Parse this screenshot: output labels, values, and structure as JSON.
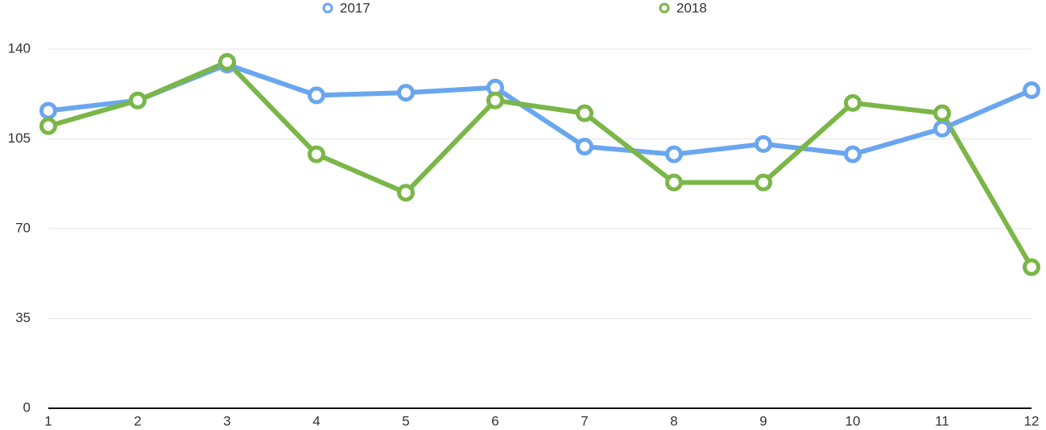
{
  "chart_data": {
    "type": "line",
    "categories": [
      "1",
      "2",
      "3",
      "4",
      "5",
      "6",
      "7",
      "8",
      "9",
      "10",
      "11",
      "12"
    ],
    "series": [
      {
        "name": "2017",
        "color": "#6aa6ef",
        "values": [
          116,
          120,
          134,
          122,
          123,
          125,
          102,
          99,
          103,
          99,
          109,
          124
        ]
      },
      {
        "name": "2018",
        "color": "#7ab648",
        "values": [
          110,
          120,
          135,
          99,
          84,
          120,
          115,
          88,
          88,
          119,
          115,
          55
        ]
      }
    ],
    "ylim": [
      0,
      140
    ],
    "yticks": [
      0,
      35,
      70,
      105,
      140
    ],
    "grid": true,
    "legend": "top"
  }
}
